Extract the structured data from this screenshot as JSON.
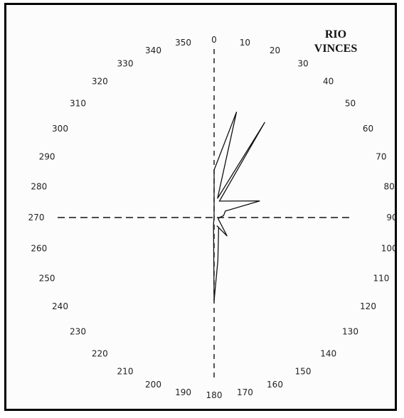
{
  "chart_data": {
    "type": "rose",
    "title_lines": [
      "RIO",
      "VINCES"
    ],
    "angle_labels": [
      "0",
      "10",
      "20",
      "30",
      "40",
      "50",
      "60",
      "70",
      "80",
      "90",
      "100",
      "110",
      "120",
      "130",
      "140",
      "150",
      "160",
      "170",
      "180",
      "190",
      "200",
      "210",
      "220",
      "230",
      "240",
      "250",
      "260",
      "270",
      "280",
      "290",
      "300",
      "310",
      "320",
      "330",
      "340",
      "350"
    ],
    "angular_unit": "degrees",
    "direction": "clockwise from north",
    "axes": "dashed cross at 0-180 and 90-270",
    "rose_outline": [
      {
        "angle": 0,
        "r": 0.44
      },
      {
        "angle": 12,
        "r": 1.0
      },
      {
        "angle": 10,
        "r": 0.18
      },
      {
        "angle": 28,
        "r": 1.0
      },
      {
        "angle": 18,
        "r": 0.16
      },
      {
        "angle": 70,
        "r": 0.45
      },
      {
        "angle": 60,
        "r": 0.12
      },
      {
        "angle": 78,
        "r": 0.09
      },
      {
        "angle": 90,
        "r": 0.05
      },
      {
        "angle": 108,
        "r": 0.04
      },
      {
        "angle": 145,
        "r": 0.21
      },
      {
        "angle": 162,
        "r": 0.08
      },
      {
        "angle": 155,
        "r": 0.1
      },
      {
        "angle": 175,
        "r": 0.4
      },
      {
        "angle": 180,
        "r": 0.77
      },
      {
        "angle": 185,
        "r": 0.06
      },
      {
        "angle": 0,
        "r": 0.0
      }
    ]
  }
}
